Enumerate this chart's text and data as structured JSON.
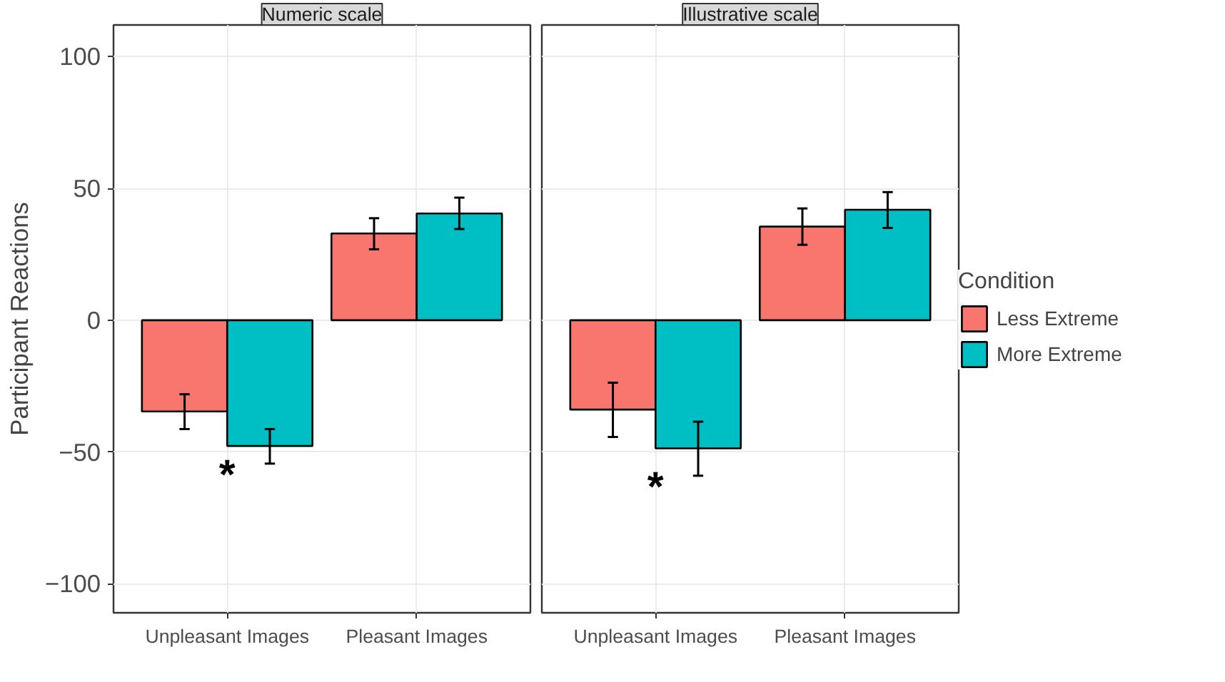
{
  "chart_data": [
    {
      "type": "bar",
      "title": "Numeric scale",
      "ylabel": "Participant Reactions",
      "categories": [
        "Unpleasant Images",
        "Pleasant Images"
      ],
      "series": [
        {
          "color": "#f8766d",
          "values": [
            -34.6,
            32.9
          ],
          "errors": [
            [
              -41.3,
              -28.1
            ],
            [
              26.9,
              38.7
            ]
          ]
        },
        {
          "color": "#00bfc4",
          "values": [
            -47.7,
            40.5
          ],
          "errors": [
            [
              -54.4,
              -41.3
            ],
            [
              34.6,
              46.5
            ]
          ]
        }
      ],
      "ylim": [
        -111,
        112
      ],
      "yticks": [
        -100,
        -50,
        0,
        50,
        100
      ],
      "grid": true,
      "annotations": [
        "*"
      ]
    },
    {
      "type": "bar",
      "title": "Illustrative scale",
      "legend_title": "Condition",
      "categories": [
        "Unpleasant Images",
        "Pleasant Images"
      ],
      "series": [
        {
          "name": "Less Extreme",
          "color": "#f8766d",
          "values": [
            -33.9,
            35.5
          ],
          "errors": [
            [
              -44.3,
              -23.7
            ],
            [
              28.6,
              42.4
            ]
          ]
        },
        {
          "name": "More Extreme",
          "color": "#00bfc4",
          "values": [
            -48.6,
            41.9
          ],
          "errors": [
            [
              -59.0,
              -38.5
            ],
            [
              35.0,
              48.6
            ]
          ]
        }
      ],
      "ylim": [
        -111,
        112
      ],
      "yticks": [
        -100,
        -50,
        0,
        50,
        100
      ],
      "grid": true,
      "legend": "right",
      "tick_labels": "x",
      "annotations": [
        "*"
      ]
    }
  ]
}
